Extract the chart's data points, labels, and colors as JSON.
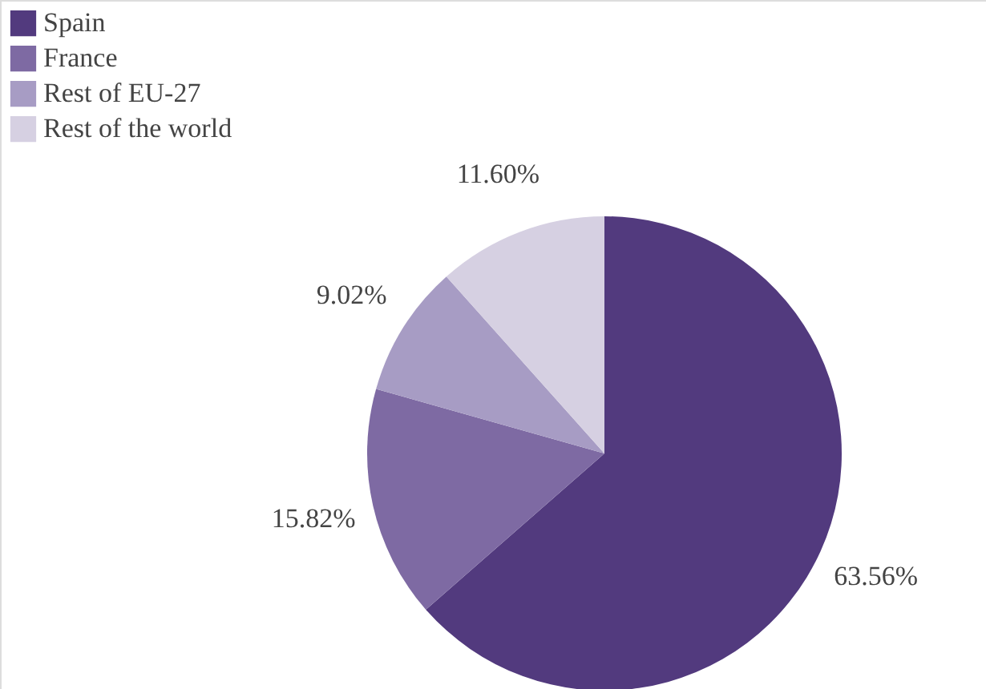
{
  "chart_data": {
    "type": "pie",
    "categories": [
      "Spain",
      "France",
      "Rest of EU-27",
      "Rest of the world"
    ],
    "values": [
      63.56,
      15.82,
      9.02,
      11.6
    ],
    "colors": [
      "#523a7e",
      "#7e6aa3",
      "#a79cc4",
      "#d6d0e2"
    ],
    "value_labels": [
      "63.56%",
      "15.82%",
      "9.02%",
      "11.60%"
    ],
    "legend": "top left"
  }
}
